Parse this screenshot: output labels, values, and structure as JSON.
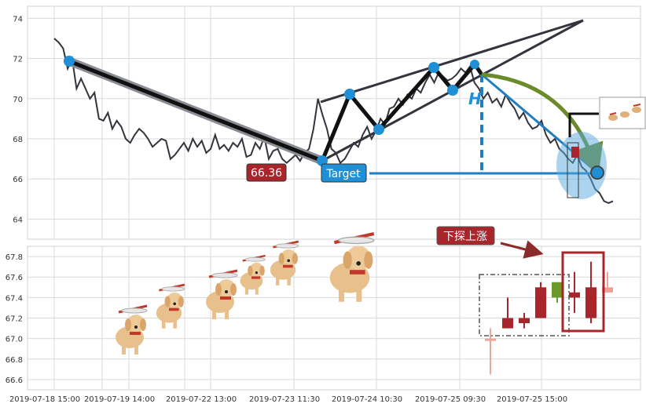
{
  "chart_data": [
    {
      "type": "line",
      "panel": "price",
      "title": "",
      "xlabel": "",
      "ylabel": "",
      "ylim": [
        63,
        74.6
      ],
      "y_ticks": [
        64,
        66,
        68,
        70,
        72,
        74
      ],
      "series": [
        {
          "values": [
            73.0,
            72.8,
            72.5,
            71.5,
            72.0,
            70.5,
            71.0,
            70.5,
            70.0,
            70.3,
            69.0,
            68.9,
            69.3,
            68.5,
            68.9,
            68.6,
            68.0,
            67.8,
            68.2,
            68.5,
            68.3,
            68.0,
            67.6,
            67.8,
            68.0,
            67.9,
            67.0,
            67.2,
            67.5,
            67.8,
            67.4,
            68.0,
            67.6,
            67.9,
            67.3,
            67.5,
            68.2,
            67.5,
            67.7,
            67.4,
            67.8,
            67.6,
            68.0,
            67.1,
            67.2,
            67.8,
            67.5,
            68.1,
            67.0,
            67.4,
            67.5,
            67.0,
            66.8,
            67.0,
            67.2,
            66.9,
            67.3,
            67.5,
            68.5,
            70.0,
            69.2,
            68.5,
            67.5,
            67.3,
            66.8,
            67.0,
            67.4,
            67.8,
            67.6,
            68.2,
            68.6,
            68.0,
            68.4,
            69.0,
            68.7,
            69.5,
            69.6,
            70.0,
            69.7,
            70.2,
            70.0,
            70.5,
            70.3,
            70.8,
            71.2,
            70.8,
            71.3,
            71.1,
            70.9,
            71.0,
            71.2,
            71.5,
            71.3,
            71.6,
            70.8,
            70.5,
            70.0,
            70.3,
            69.8,
            70.0,
            69.6,
            70.2,
            69.8,
            69.5,
            69.0,
            69.3,
            68.8,
            68.5,
            68.6,
            68.9,
            68.2,
            67.8,
            68.0,
            67.5,
            67.3,
            67.0,
            66.8,
            67.2,
            66.6,
            66.4,
            66.0,
            65.5,
            65.3,
            64.9,
            64.8,
            64.9
          ]
        }
      ],
      "annotations": {
        "price_label": "66.36",
        "target_label": "Target",
        "height_label": "H"
      }
    },
    {
      "type": "bar",
      "panel": "candles",
      "title": "",
      "xlabel": "",
      "ylabel": "",
      "ylim": [
        66.5,
        67.9
      ],
      "y_ticks": [
        66.6,
        66.8,
        67.0,
        67.2,
        67.4,
        67.6,
        67.8
      ],
      "candles": [
        {
          "open": 67.0,
          "high": 67.1,
          "low": 66.65,
          "close": 67.0,
          "color": "#e8a79a"
        },
        {
          "open": 67.2,
          "high": 67.4,
          "low": 67.1,
          "close": 67.1,
          "color": "#a8262b"
        },
        {
          "open": 67.2,
          "high": 67.25,
          "low": 67.1,
          "close": 67.15,
          "color": "#a8262b"
        },
        {
          "open": 67.5,
          "high": 67.55,
          "low": 67.2,
          "close": 67.2,
          "color": "#a8262b"
        },
        {
          "open": 67.4,
          "high": 67.55,
          "low": 67.35,
          "close": 67.55,
          "color": "#6b9a2a"
        },
        {
          "open": 67.45,
          "high": 67.65,
          "low": 67.25,
          "close": 67.4,
          "color": "#a8262b"
        },
        {
          "open": 67.5,
          "high": 67.75,
          "low": 67.15,
          "close": 67.2,
          "color": "#a8262b"
        },
        {
          "open": 67.5,
          "high": 67.65,
          "low": 67.45,
          "close": 67.45,
          "color": "#f0a097"
        }
      ],
      "annotation": "下探上涨"
    }
  ],
  "x_tick_labels": [
    "2019-07-18 15:00",
    "2019-07-19 14:00",
    "2019-07-22 13:00",
    "2019-07-23 11:30",
    "2019-07-24 10:30",
    "2019-07-25 09:30",
    "2019-07-25 15:00"
  ],
  "colors": {
    "line": "#33343d",
    "blue": "#1f7ec2",
    "red": "#a8262b",
    "green": "#6b8a2a",
    "grid": "#d9d9d9"
  }
}
